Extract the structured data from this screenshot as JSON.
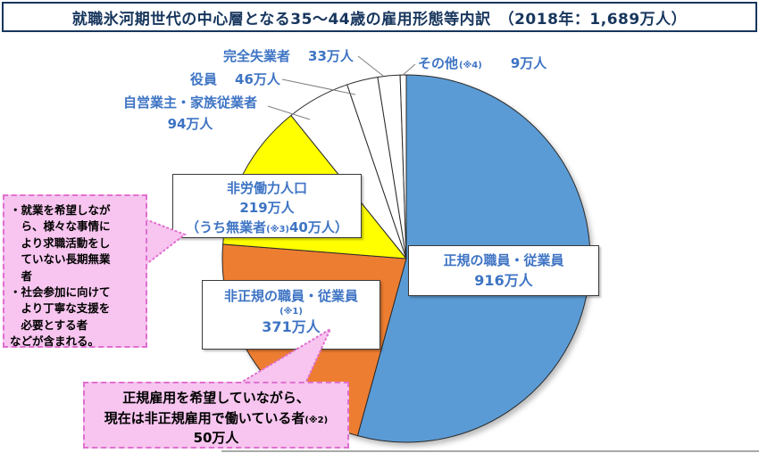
{
  "title": {
    "text": "就職氷河期世代の中心層となる35～44歳の雇用形態等内訳　（2018年：1,689万人）"
  },
  "chart_data": {
    "type": "pie",
    "title": "就職氷河期世代の中心層となる35～44歳の雇用形態等内訳",
    "year_total_label": "2018年：1,689万人",
    "total_man_nin": 1689,
    "unit": "万人",
    "start_angle_deg": 0,
    "direction": "clockwise",
    "legend": "none",
    "slices": [
      {
        "name": "正規の職員・従業員",
        "value": 916,
        "color": "#5B9BD5"
      },
      {
        "name": "非正規の職員・従業員",
        "note": "※1",
        "value": 371,
        "color": "#ED7D31"
      },
      {
        "name": "非労働力人口",
        "detail": "うち無業者(※3)40万人",
        "value": 219,
        "color": "#FFFF00"
      },
      {
        "name": "自営業主・家族従業者",
        "value": 94,
        "color": "#FFFFFF"
      },
      {
        "name": "役員",
        "value": 46,
        "color": "#FFFFFF"
      },
      {
        "name": "完全失業者",
        "value": 33,
        "color": "#FFFFFF"
      },
      {
        "name": "その他",
        "note": "※4",
        "value": 9,
        "color": "#FFFFFF"
      }
    ],
    "annotations": [
      "就業を希望しながら、様々な事情により求職活動をしていない長期無業者・社会参加に向けてより丁寧な支援を必要とする者などが含まれる。",
      "正規雇用を希望していながら、現在は非正規雇用で働いている者(※2) 50万人"
    ]
  },
  "labels": {
    "kanzen": {
      "name": "完全失業者",
      "value": "33万人"
    },
    "sonota": {
      "name": "その他",
      "note": "(※4)",
      "value": "9万人"
    },
    "yakuin": {
      "name": "役員",
      "value": "46万人"
    },
    "jieigyo": {
      "line1": "自営業主・家族従業者",
      "line2": "94万人"
    },
    "hiroudou": {
      "line1": "非労働力人口",
      "line2": "219万人",
      "line3_pre": "（うち無業者",
      "line3_note": "(※3)",
      "line3_post": "40万人）"
    },
    "hiseiki": {
      "line1": "非正規の職員・従業員",
      "note": "(※1)",
      "value": "371万人"
    },
    "seiki": {
      "line1": "正規の職員・従業員",
      "value": "916万人"
    }
  },
  "callouts": {
    "left": {
      "text": "・就業を希望しなが\n　ら、様々な事情に\n　より求職活動をし\n　ていない長期無業\n　者\n・社会参加に向けて\n　より丁寧な支援を\n　必要とする者\nなどが含まれる。"
    },
    "bottom": {
      "line1": "正規雇用を希望していながら、",
      "line2": "現在は非正規雇用で働いている者",
      "line2_note": "(※2)",
      "line3": "50万人"
    }
  },
  "colors": {
    "title_navy": "#17365D",
    "label_blue": "#3E74C4",
    "slice_regular_blue": "#5B9BD5",
    "slice_nonregular_orange": "#ED7D31",
    "slice_nonlabor_yellow": "#FFFF00",
    "callout_pink": "#F7C5EF",
    "callout_border_pink": "#E06FD0",
    "slice_stroke": "#2a2a2a"
  }
}
